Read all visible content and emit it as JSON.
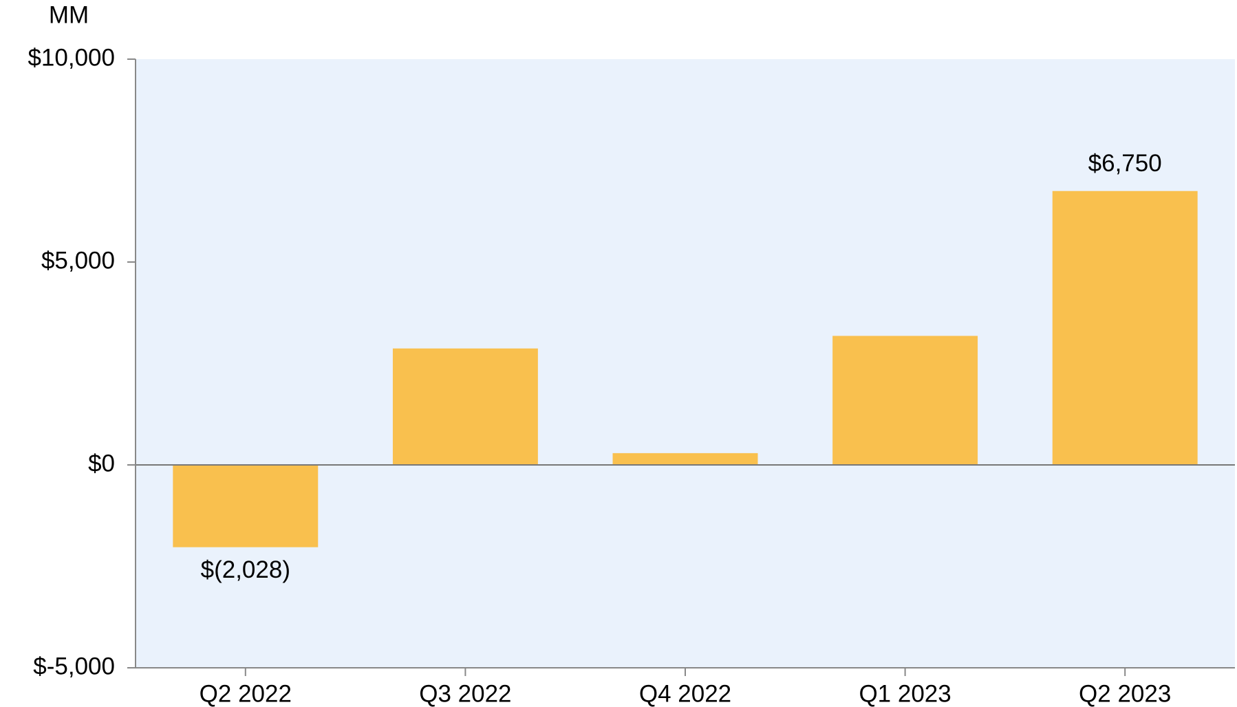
{
  "chart_data": {
    "type": "bar",
    "y_axis_label": "MM",
    "categories": [
      "Q2 2022",
      "Q3 2022",
      "Q4 2022",
      "Q1 2023",
      "Q2 2023"
    ],
    "values": [
      -2028,
      2870,
      290,
      3180,
      6750
    ],
    "value_labels": [
      "$(2,028)",
      null,
      null,
      null,
      "$6,750"
    ],
    "color": "#f9c04e",
    "ylim": [
      -5000,
      10000
    ],
    "yticks": [
      {
        "value": -5000,
        "label": "$-5,000"
      },
      {
        "value": 0,
        "label": "$0"
      },
      {
        "value": 5000,
        "label": "$5,000"
      },
      {
        "value": 10000,
        "label": "$10,000"
      }
    ]
  }
}
